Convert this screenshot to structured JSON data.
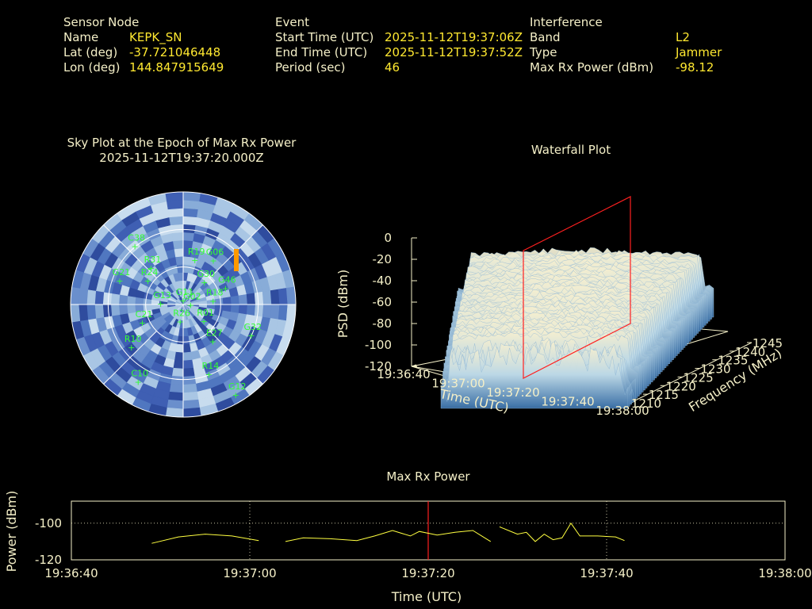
{
  "colors": {
    "background": "#000000",
    "label": "#f5f0c8",
    "value": "#ffe830",
    "sat": "#33ff33",
    "marker": "#ff2020",
    "trace": "#ffff40",
    "cluster": "#ff9900"
  },
  "header": {
    "sensor": {
      "title": "Sensor Node",
      "name_label": "Name",
      "name": "KEPK_SN",
      "lat_label": "Lat (deg)",
      "lat": "-37.721046448",
      "lon_label": "Lon (deg)",
      "lon": "144.847915649"
    },
    "event": {
      "title": "Event",
      "start_label": "Start Time (UTC)",
      "start": "2025-11-12T19:37:06Z",
      "end_label": "End Time (UTC)",
      "end": "2025-11-12T19:37:52Z",
      "period_label": "Period (sec)",
      "period": "46"
    },
    "interference": {
      "title": "Interference",
      "band_label": "Band",
      "band": "L2",
      "type_label": "Type",
      "type": "Jammer",
      "power_label": "Max Rx Power (dBm)",
      "power": "-98.12"
    }
  },
  "chart_data": [
    {
      "type": "scatter",
      "title": "Sky Plot at the Epoch of Max Rx Power",
      "subtitle": "2025-11-12T19:37:20.000Z",
      "polar": true,
      "satellites": [
        {
          "name": "G11",
          "az": 0,
          "el": 88
        },
        {
          "name": "R19",
          "az": 15,
          "el": 60
        },
        {
          "name": "G06",
          "az": 35,
          "el": 55
        },
        {
          "name": "G30",
          "az": 45,
          "el": 70
        },
        {
          "name": "R31",
          "az": 318,
          "el": 58
        },
        {
          "name": "R24",
          "az": 303,
          "el": 62
        },
        {
          "name": "C38",
          "az": 320,
          "el": 40
        },
        {
          "name": "G46",
          "az": 70,
          "el": 60
        },
        {
          "name": "R18",
          "az": 85,
          "el": 70
        },
        {
          "name": "G12",
          "az": 150,
          "el": 20
        },
        {
          "name": "G32",
          "az": 115,
          "el": 40
        },
        {
          "name": "G13",
          "az": 270,
          "el": 75
        },
        {
          "name": "C21",
          "az": 245,
          "el": 60
        },
        {
          "name": "R10",
          "az": 230,
          "el": 45
        },
        {
          "name": "R26",
          "az": 190,
          "el": 78
        },
        {
          "name": "R01",
          "az": 130,
          "el": 72
        },
        {
          "name": "E27",
          "az": 142,
          "el": 58
        },
        {
          "name": "G21",
          "az": 290,
          "el": 45
        },
        {
          "name": "R14",
          "az": 160,
          "el": 40
        },
        {
          "name": "C10",
          "az": 210,
          "el": 30
        },
        {
          "name": "G02",
          "az": 100,
          "el": 85
        }
      ]
    },
    {
      "type": "area",
      "title": "Waterfall Plot",
      "xlabel": "Time (UTC)",
      "ylabel": "Frequency (MHz)",
      "zlabel": "PSD (dBm)",
      "x_ticks": [
        "19:36:40",
        "19:37:00",
        "19:37:20",
        "19:37:40",
        "19:38:00"
      ],
      "y_ticks": [
        "1210",
        "1215",
        "1220",
        "1225",
        "1230",
        "1235",
        "1240",
        "1245"
      ],
      "z_ticks": [
        "0",
        "-20",
        "-40",
        "-60",
        "-80",
        "-100",
        "-120"
      ],
      "zlim": [
        -120,
        0
      ],
      "marker_time": "19:37:20"
    },
    {
      "type": "line",
      "title": "Max Rx Power",
      "xlabel": "Time (UTC)",
      "ylabel": "Power (dBm)",
      "x_ticks": [
        "19:36:40",
        "19:37:00",
        "19:37:20",
        "19:37:40",
        "19:38:00"
      ],
      "y_ticks": [
        "-100",
        "-120"
      ],
      "xlim": [
        0,
        80
      ],
      "ylim": [
        -120,
        -88
      ],
      "marker_x": 40,
      "grid": true,
      "segments": [
        [
          [
            9,
            -111
          ],
          [
            12,
            -107.5
          ],
          [
            15,
            -106
          ],
          [
            18,
            -107
          ],
          [
            21,
            -109.5
          ]
        ],
        [
          [
            20,
            -110
          ]
        ],
        [
          [
            24,
            -110
          ],
          [
            26,
            -108
          ],
          [
            29,
            -108.5
          ],
          [
            32,
            -109.5
          ],
          [
            34,
            -107
          ],
          [
            36,
            -104
          ],
          [
            38,
            -107
          ],
          [
            39,
            -104.5
          ],
          [
            41,
            -106.5
          ],
          [
            43,
            -105
          ],
          [
            45,
            -104
          ],
          [
            46,
            -107
          ],
          [
            47,
            -110
          ]
        ],
        [
          [
            48,
            -102
          ],
          [
            50,
            -106
          ],
          [
            51,
            -105
          ],
          [
            52,
            -110
          ],
          [
            53,
            -106
          ],
          [
            54,
            -109
          ],
          [
            55,
            -108
          ],
          [
            56,
            -100
          ],
          [
            57,
            -107
          ],
          [
            59,
            -107
          ],
          [
            61,
            -107.5
          ],
          [
            62,
            -109.5
          ]
        ]
      ]
    }
  ]
}
